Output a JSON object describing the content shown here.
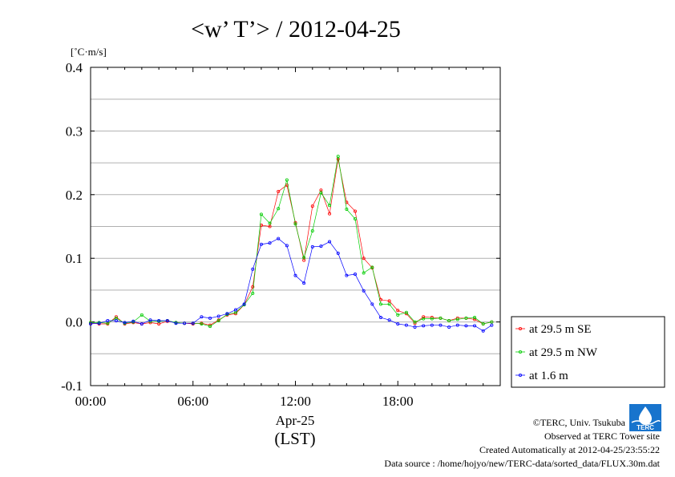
{
  "chart_data": {
    "type": "line",
    "title": "<w’ T’> / 2012-04-25",
    "ylabel": "[˚C·m/s]",
    "xlabel_date": "Apr-25",
    "xlabel_tz": "(LST)",
    "xlim": [
      0,
      24
    ],
    "ylim": [
      -0.1,
      0.4
    ],
    "xticks": [
      {
        "value": 0,
        "label": "00:00"
      },
      {
        "value": 6,
        "label": "06:00"
      },
      {
        "value": 12,
        "label": "12:00"
      },
      {
        "value": 18,
        "label": "18:00"
      }
    ],
    "yticks": [
      {
        "value": 0.4,
        "label": "0.4"
      },
      {
        "value": 0.3,
        "label": "0.3"
      },
      {
        "value": 0.2,
        "label": "0.2"
      },
      {
        "value": 0.1,
        "label": "0.1"
      },
      {
        "value": 0.0,
        "label": "0.0"
      },
      {
        "value": -0.1,
        "label": "-0.1"
      }
    ],
    "grid": true,
    "legend_position": "right, outside plot, lower",
    "x": [
      0.0,
      0.5,
      1.0,
      1.5,
      2.0,
      2.5,
      3.0,
      3.5,
      4.0,
      4.5,
      5.0,
      5.5,
      6.0,
      6.5,
      7.0,
      7.5,
      8.0,
      8.5,
      9.0,
      9.5,
      10.0,
      10.5,
      11.0,
      11.5,
      12.0,
      12.5,
      13.0,
      13.5,
      14.0,
      14.5,
      15.0,
      15.5,
      16.0,
      16.5,
      17.0,
      17.5,
      18.0,
      18.5,
      19.0,
      19.5,
      20.0,
      20.5,
      21.0,
      21.5,
      22.0,
      22.5,
      23.0,
      23.5
    ],
    "series": [
      {
        "name": "at 29.5 m SE",
        "color": "#ff0000",
        "values": [
          -0.002,
          -0.003,
          -0.003,
          0.008,
          -0.003,
          -0.001,
          -0.003,
          -0.001,
          -0.003,
          0.001,
          -0.001,
          -0.002,
          -0.003,
          -0.002,
          -0.005,
          0.003,
          0.011,
          0.013,
          0.027,
          0.055,
          0.152,
          0.15,
          0.205,
          0.215,
          0.156,
          0.097,
          0.182,
          0.207,
          0.17,
          0.256,
          0.188,
          0.174,
          0.1,
          0.085,
          0.035,
          0.033,
          0.018,
          0.013,
          -0.002,
          0.008,
          0.007,
          0.006,
          0.002,
          0.006,
          0.006,
          0.004,
          -0.003,
          0.0
        ]
      },
      {
        "name": "at 29.5 m NW",
        "color": "#00cc00",
        "values": [
          -0.001,
          -0.001,
          -0.002,
          0.006,
          -0.002,
          0.0,
          0.011,
          0.001,
          0.001,
          0.002,
          -0.001,
          -0.002,
          -0.002,
          -0.003,
          -0.007,
          0.002,
          0.012,
          0.015,
          0.027,
          0.045,
          0.169,
          0.155,
          0.178,
          0.223,
          0.154,
          0.101,
          0.143,
          0.203,
          0.183,
          0.26,
          0.177,
          0.162,
          0.077,
          0.086,
          0.028,
          0.028,
          0.011,
          0.015,
          0.0,
          0.005,
          0.005,
          0.006,
          0.002,
          0.004,
          0.006,
          0.007,
          -0.003,
          0.0
        ]
      },
      {
        "name": "at 1.6 m",
        "color": "#0000ff",
        "values": [
          -0.003,
          -0.002,
          0.002,
          0.002,
          -0.001,
          0.001,
          -0.003,
          0.003,
          0.002,
          0.002,
          -0.002,
          -0.002,
          -0.002,
          0.008,
          0.006,
          0.009,
          0.013,
          0.019,
          0.028,
          0.083,
          0.122,
          0.124,
          0.131,
          0.12,
          0.073,
          0.061,
          0.118,
          0.119,
          0.126,
          0.108,
          0.073,
          0.075,
          0.049,
          0.028,
          0.007,
          0.003,
          -0.003,
          -0.005,
          -0.008,
          -0.006,
          -0.005,
          -0.005,
          -0.008,
          -0.005,
          -0.006,
          -0.006,
          -0.014,
          -0.005
        ]
      }
    ]
  },
  "footer": {
    "copyright": "©TERC, Univ. Tsukuba",
    "observed": "Observed at TERC Tower site",
    "created": "Created Automatically at 2012-04-25/23:55:22",
    "source": "Data source : /home/hojyo/new/TERC-data/sorted_data/FLUX.30m.dat",
    "logo_text": "TERC",
    "logo_color": "#1874cd"
  }
}
